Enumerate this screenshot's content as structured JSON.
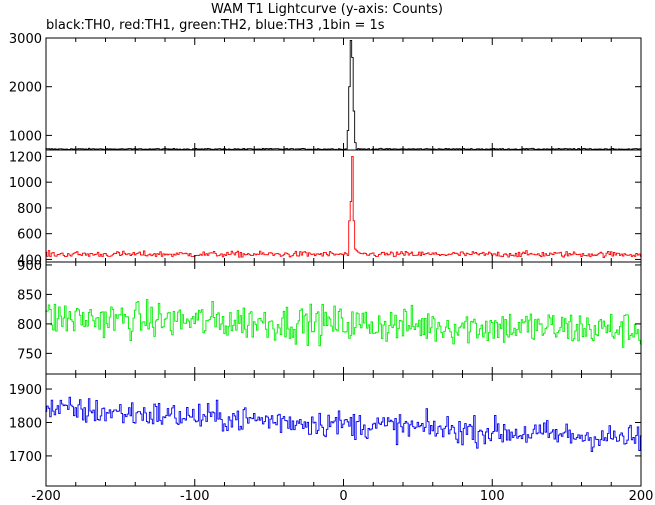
{
  "chart_data": {
    "type": "line",
    "title": "WAM T1 Lightcurve (y-axis: Counts)",
    "subtitle": "black:TH0, red:TH1, green:TH2, blue:TH3 ,1bin = 1s",
    "x_ticks": [
      "-200",
      "-100",
      "0",
      "100",
      "200"
    ],
    "xlim": [
      -200,
      200
    ],
    "panels": [
      {
        "id": "TH0",
        "color": "#000000",
        "ylim": [
          700,
          3000
        ],
        "y_ticks": [
          {
            "value": 1000,
            "label": "1000"
          },
          {
            "value": 2000,
            "label": "2000"
          },
          {
            "value": 3000,
            "label": "3000"
          }
        ],
        "baseline": 720,
        "noise": 12,
        "peaks": [
          {
            "x": 3,
            "y": 1100
          },
          {
            "x": 4,
            "y": 2000
          },
          {
            "x": 5,
            "y": 2950
          },
          {
            "x": 6,
            "y": 2600
          },
          {
            "x": 7,
            "y": 1500
          },
          {
            "x": 8,
            "y": 850
          }
        ]
      },
      {
        "id": "TH1",
        "color": "#ff0000",
        "ylim": [
          380,
          1250
        ],
        "y_ticks": [
          {
            "value": 400,
            "label": "400"
          },
          {
            "value": 600,
            "label": "600"
          },
          {
            "value": 800,
            "label": "800"
          },
          {
            "value": 1000,
            "label": "1000"
          },
          {
            "value": 1200,
            "label": "1200"
          }
        ],
        "baseline": 440,
        "noise": 22,
        "peaks": [
          {
            "x": 4,
            "y": 700
          },
          {
            "x": 5,
            "y": 850
          },
          {
            "x": 6,
            "y": 1200
          },
          {
            "x": 7,
            "y": 700
          },
          {
            "x": 8,
            "y": 480
          }
        ]
      },
      {
        "id": "TH2",
        "color": "#00ee00",
        "ylim": [
          715,
          905
        ],
        "y_ticks": [
          {
            "value": 750,
            "label": "750"
          },
          {
            "value": 800,
            "label": "800"
          },
          {
            "value": 850,
            "label": "850"
          },
          {
            "value": 900,
            "label": "900"
          }
        ],
        "baseline_start": 810,
        "baseline_end": 790,
        "noise": 30,
        "peaks": []
      },
      {
        "id": "TH3",
        "color": "#0000ee",
        "ylim": [
          1610,
          1945
        ],
        "y_ticks": [
          {
            "value": 1700,
            "label": "1700"
          },
          {
            "value": 1800,
            "label": "1800"
          },
          {
            "value": 1900,
            "label": "1900"
          }
        ],
        "baseline_start": 1840,
        "baseline_end": 1750,
        "noise": 40,
        "peaks": []
      }
    ]
  }
}
